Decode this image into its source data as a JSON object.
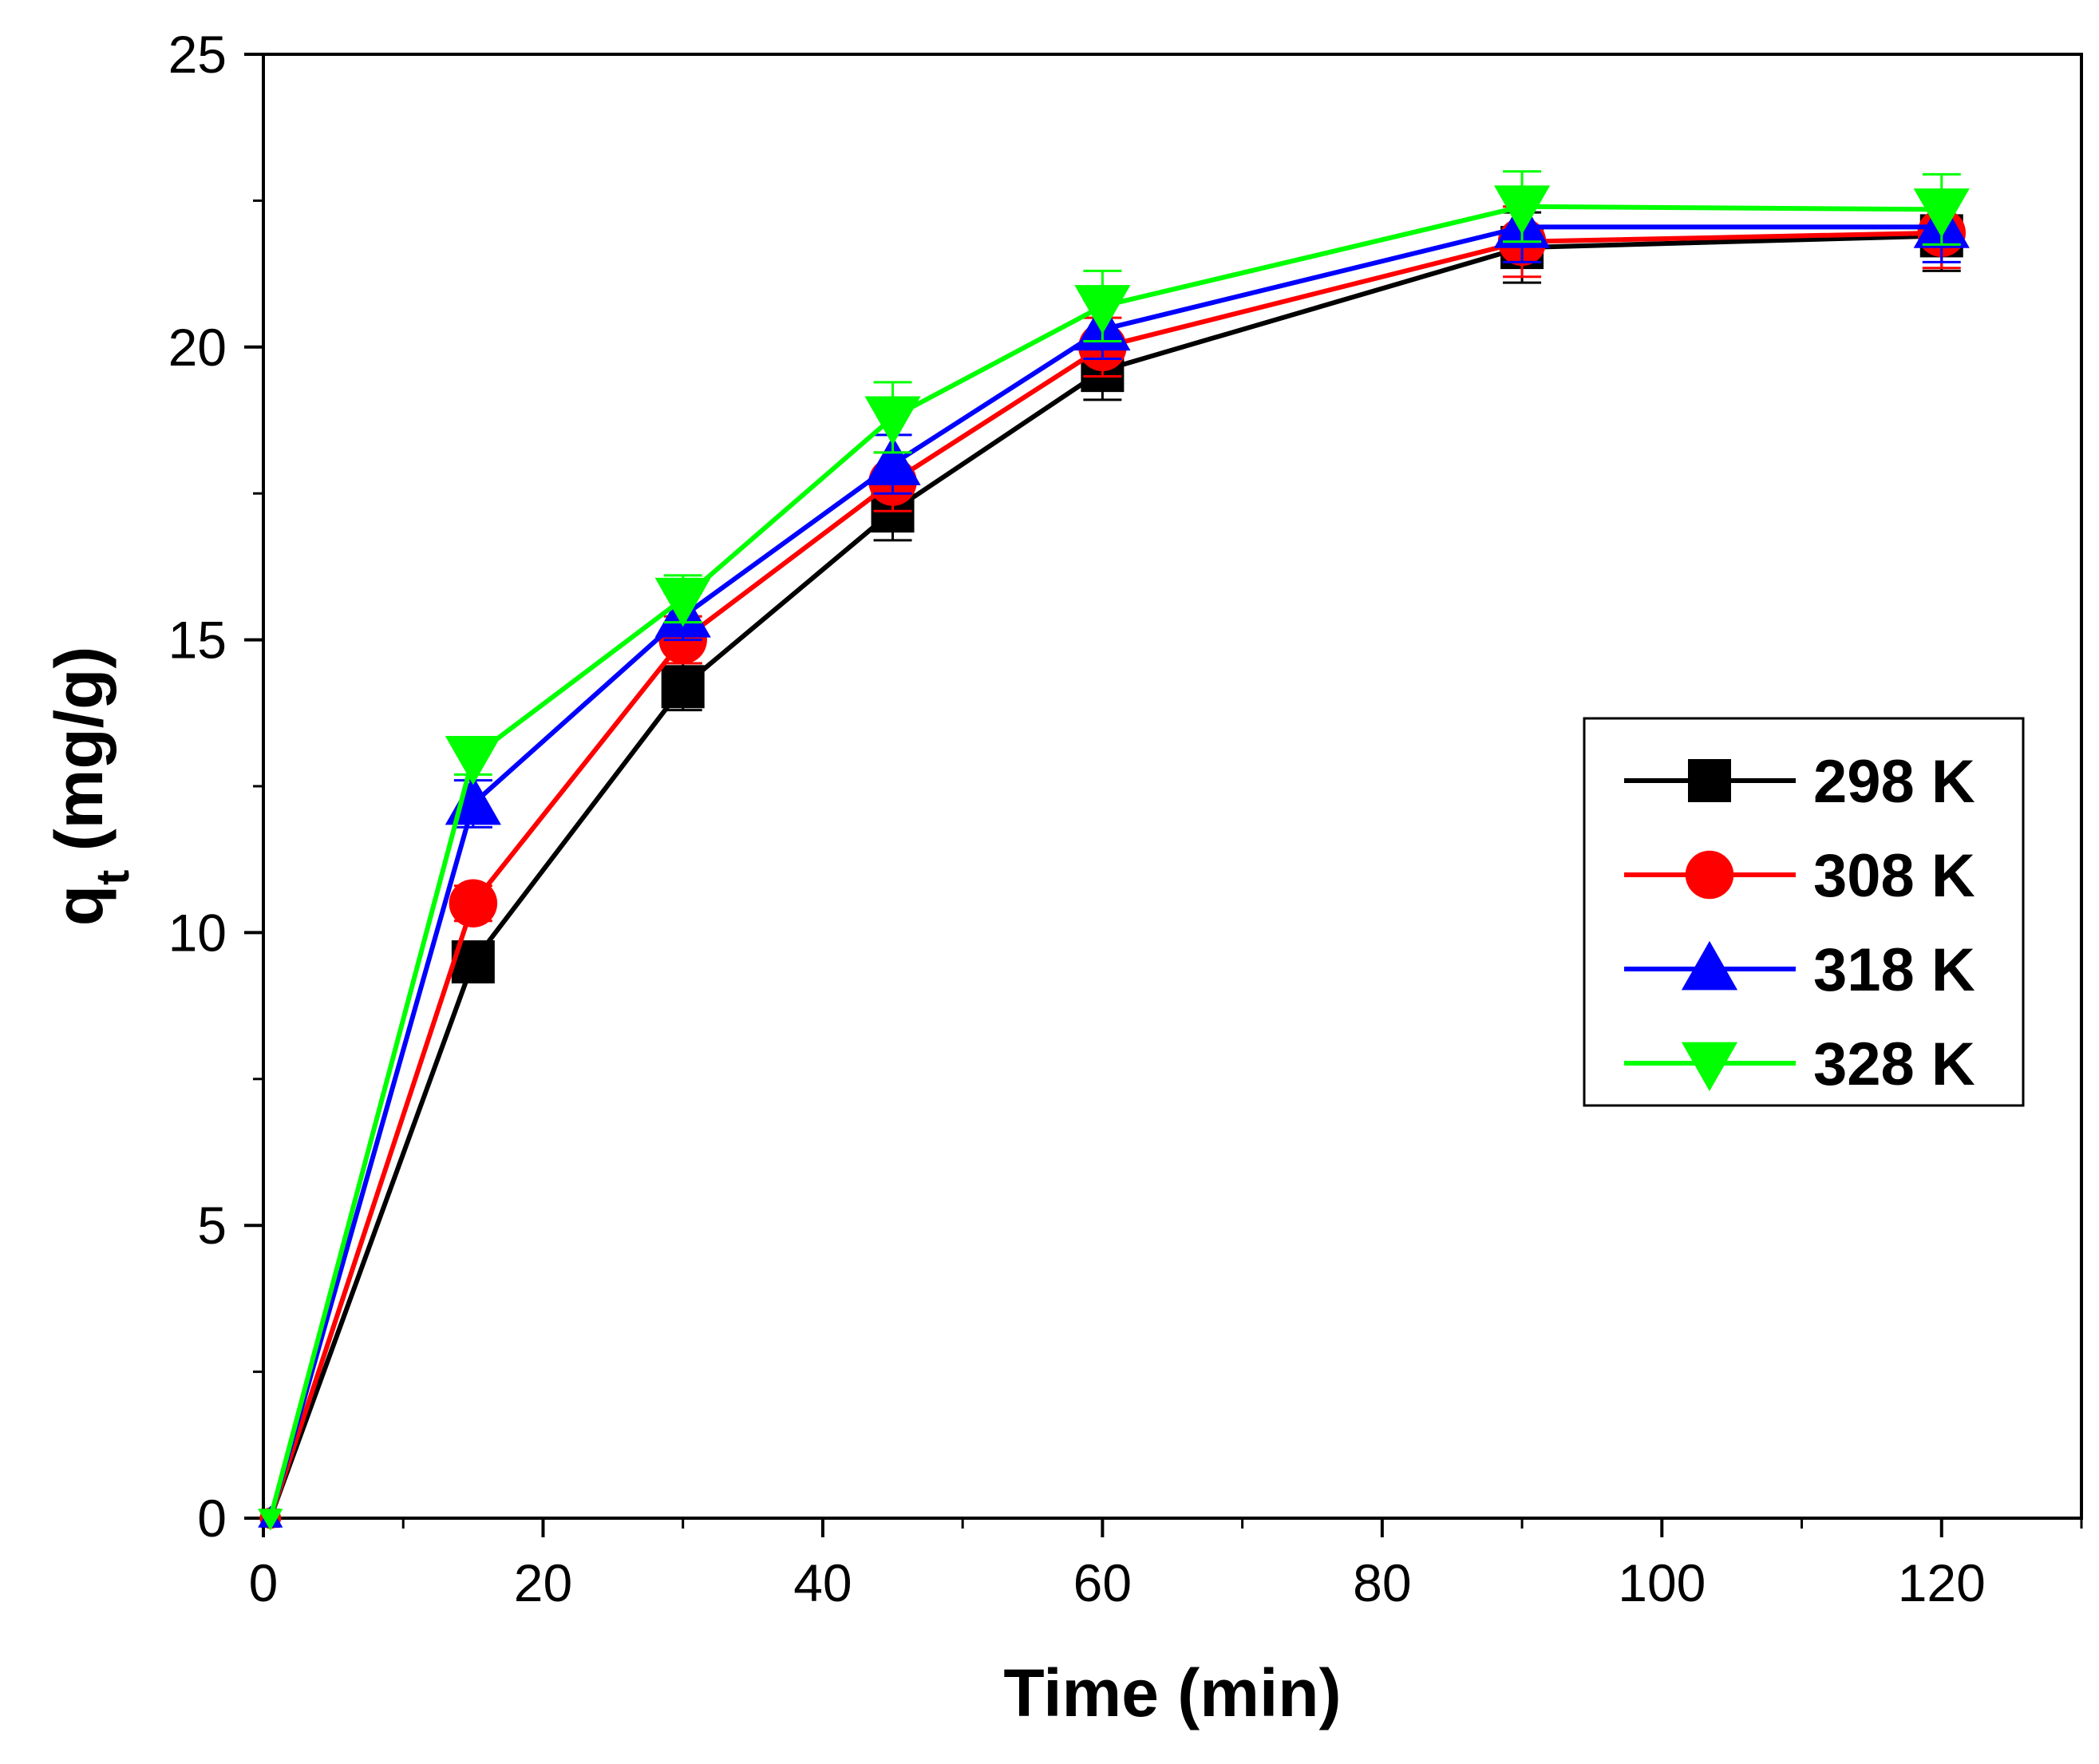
{
  "chart_data": {
    "type": "line",
    "title": "",
    "xlabel": "Time (min)",
    "ylabel_main": "q",
    "ylabel_sub": "t",
    "ylabel_rest": " (mg/g)",
    "xlim": [
      0,
      130
    ],
    "ylim": [
      0,
      25
    ],
    "xticks": [
      0,
      20,
      40,
      60,
      80,
      100,
      120
    ],
    "xminor": [
      10,
      30,
      50,
      70,
      90,
      110,
      130
    ],
    "yticks": [
      0,
      5,
      10,
      15,
      20,
      25
    ],
    "yminor": [
      2.5,
      7.5,
      12.5,
      17.5,
      22.5
    ],
    "x": [
      0.5,
      15,
      30,
      45,
      60,
      90,
      120
    ],
    "legend_position": "center-right",
    "series": [
      {
        "name": "298 K",
        "color": "#000000",
        "marker": "square",
        "values": [
          0,
          9.5,
          14.2,
          17.2,
          19.6,
          21.7,
          21.9
        ],
        "errors": [
          0,
          0.3,
          0.4,
          0.5,
          0.5,
          0.6,
          0.6
        ]
      },
      {
        "name": "308 K",
        "color": "#ff0000",
        "marker": "circle",
        "values": [
          0,
          10.5,
          15.0,
          17.7,
          20.0,
          21.8,
          21.95
        ],
        "errors": [
          0,
          0.3,
          0.4,
          0.5,
          0.5,
          0.6,
          0.6
        ]
      },
      {
        "name": "318 K",
        "color": "#0000ff",
        "marker": "triangle-up",
        "values": [
          0,
          12.2,
          15.4,
          18.0,
          20.3,
          22.05,
          22.05
        ],
        "errors": [
          0,
          0.4,
          0.4,
          0.5,
          0.5,
          0.6,
          0.6
        ]
      },
      {
        "name": "328 K",
        "color": "#00ff00",
        "marker": "triangle-down",
        "values": [
          0,
          13.0,
          15.7,
          18.8,
          20.7,
          22.4,
          22.35
        ],
        "errors": [
          0,
          0.3,
          0.4,
          0.6,
          0.6,
          0.6,
          0.6
        ]
      }
    ]
  }
}
